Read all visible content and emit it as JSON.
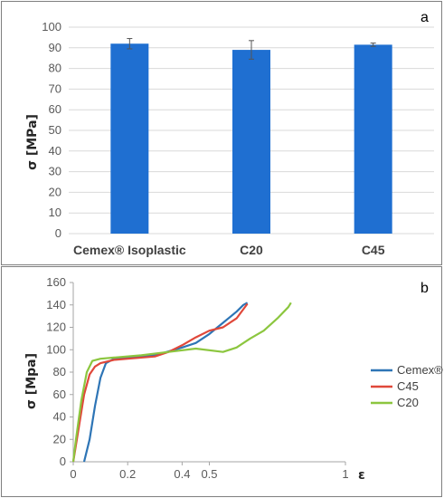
{
  "chart_data": [
    {
      "type": "bar",
      "panel_label": "a",
      "ylabel": "σ [MPa]",
      "ylim": [
        0,
        100
      ],
      "yticks": [
        0,
        10,
        20,
        30,
        40,
        50,
        60,
        70,
        80,
        90,
        100
      ],
      "grid": true,
      "categories": [
        "Cemex® Isoplastic",
        "C20",
        "C45"
      ],
      "values": [
        92,
        89,
        91.5
      ],
      "errors": [
        2.5,
        4.5,
        0.8
      ],
      "bar_color": "#1f6fd1"
    },
    {
      "type": "line",
      "panel_label": "b",
      "ylabel": "σ [Mpa]",
      "xlabel": "ε",
      "xlim": [
        0,
        1
      ],
      "ylim": [
        0,
        160
      ],
      "xticks": [
        0,
        0.2,
        0.4,
        0.5,
        1
      ],
      "xtick_labels": [
        "0",
        "0.2",
        "0.4",
        "0.5",
        "1"
      ],
      "yticks": [
        0,
        20,
        40,
        60,
        80,
        100,
        120,
        140,
        160
      ],
      "grid": false,
      "legend_position": "right",
      "series": [
        {
          "name": "Cemex®",
          "color": "#2e75b6",
          "x": [
            0.04,
            0.06,
            0.08,
            0.1,
            0.12,
            0.15,
            0.2,
            0.3,
            0.4,
            0.45,
            0.5,
            0.55,
            0.6,
            0.625,
            0.64
          ],
          "y": [
            0,
            20,
            50,
            75,
            88,
            92,
            93,
            95,
            102,
            106,
            114,
            124,
            134,
            140,
            142
          ]
        },
        {
          "name": "C45",
          "color": "#e0483a",
          "x": [
            0,
            0.02,
            0.04,
            0.06,
            0.08,
            0.1,
            0.15,
            0.2,
            0.3,
            0.35,
            0.4,
            0.45,
            0.5,
            0.55,
            0.6,
            0.64
          ],
          "y": [
            0,
            30,
            60,
            78,
            85,
            88,
            91,
            92,
            94,
            98,
            104,
            111,
            117,
            120,
            128,
            141
          ]
        },
        {
          "name": "C20",
          "color": "#8cc63f",
          "x": [
            0,
            0.01,
            0.03,
            0.05,
            0.07,
            0.1,
            0.15,
            0.25,
            0.35,
            0.45,
            0.55,
            0.6,
            0.65,
            0.7,
            0.75,
            0.79,
            0.8
          ],
          "y": [
            0,
            20,
            55,
            80,
            90,
            92,
            93,
            95,
            98,
            101,
            98,
            102,
            110,
            117,
            128,
            138,
            142
          ]
        }
      ]
    }
  ]
}
